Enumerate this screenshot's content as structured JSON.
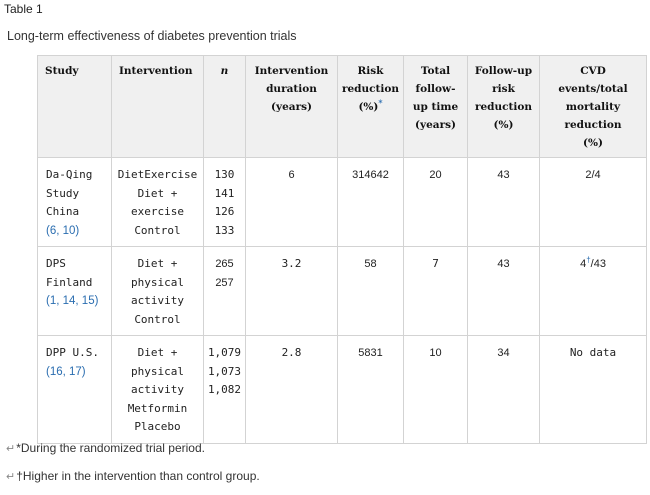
{
  "table_label": "Table 1",
  "caption": "Long-term effectiveness of diabetes prevention trials",
  "headers": {
    "study": "Study",
    "intervention": "Intervention",
    "n": "n",
    "duration": [
      "Intervention",
      "duration",
      "(years)"
    ],
    "risk": [
      "Risk",
      "reduction",
      "(%)"
    ],
    "risk_sup": "*",
    "followup_time": [
      "Total",
      "follow-",
      "up time",
      "(years)"
    ],
    "followup_risk": [
      "Follow-up",
      "risk",
      "reduction",
      "(%)"
    ],
    "cvd": [
      "CVD",
      "events/total",
      "mortality",
      "reduction",
      "(%)"
    ]
  },
  "rows": [
    {
      "study": [
        "Da-Qing",
        "Study",
        "China"
      ],
      "refs": "(6, 10)",
      "intervention": [
        "DietExercise",
        "Diet +",
        "exercise",
        "Control"
      ],
      "n": [
        "130",
        "141",
        "126",
        "133"
      ],
      "duration": "6",
      "risk": "314642",
      "followup_time": "20",
      "followup_risk": "43",
      "cvd": "2/4"
    },
    {
      "study": [
        "DPS",
        "Finland"
      ],
      "refs": "(1, 14, 15)",
      "intervention": [
        "Diet +",
        "physical",
        "activity",
        "Control"
      ],
      "n": [
        "265",
        "257"
      ],
      "duration": "3.2",
      "risk": "58",
      "followup_time": "7",
      "followup_risk": "43",
      "cvd_pre": "4",
      "cvd_sup": "†",
      "cvd_post": "/43"
    },
    {
      "study": [
        "DPP U.S."
      ],
      "refs": "(16, 17)",
      "intervention": [
        "Diet +",
        "physical",
        "activity",
        "Metformin",
        "Placebo"
      ],
      "n": [
        "1,079",
        "1,073",
        "1,082"
      ],
      "duration": "2.8",
      "risk": "5831",
      "followup_time": "10",
      "followup_risk": "34",
      "cvd": "No data"
    }
  ],
  "footnotes": [
    "*During the randomized trial period.",
    "†Higher in the intervention than control group."
  ]
}
